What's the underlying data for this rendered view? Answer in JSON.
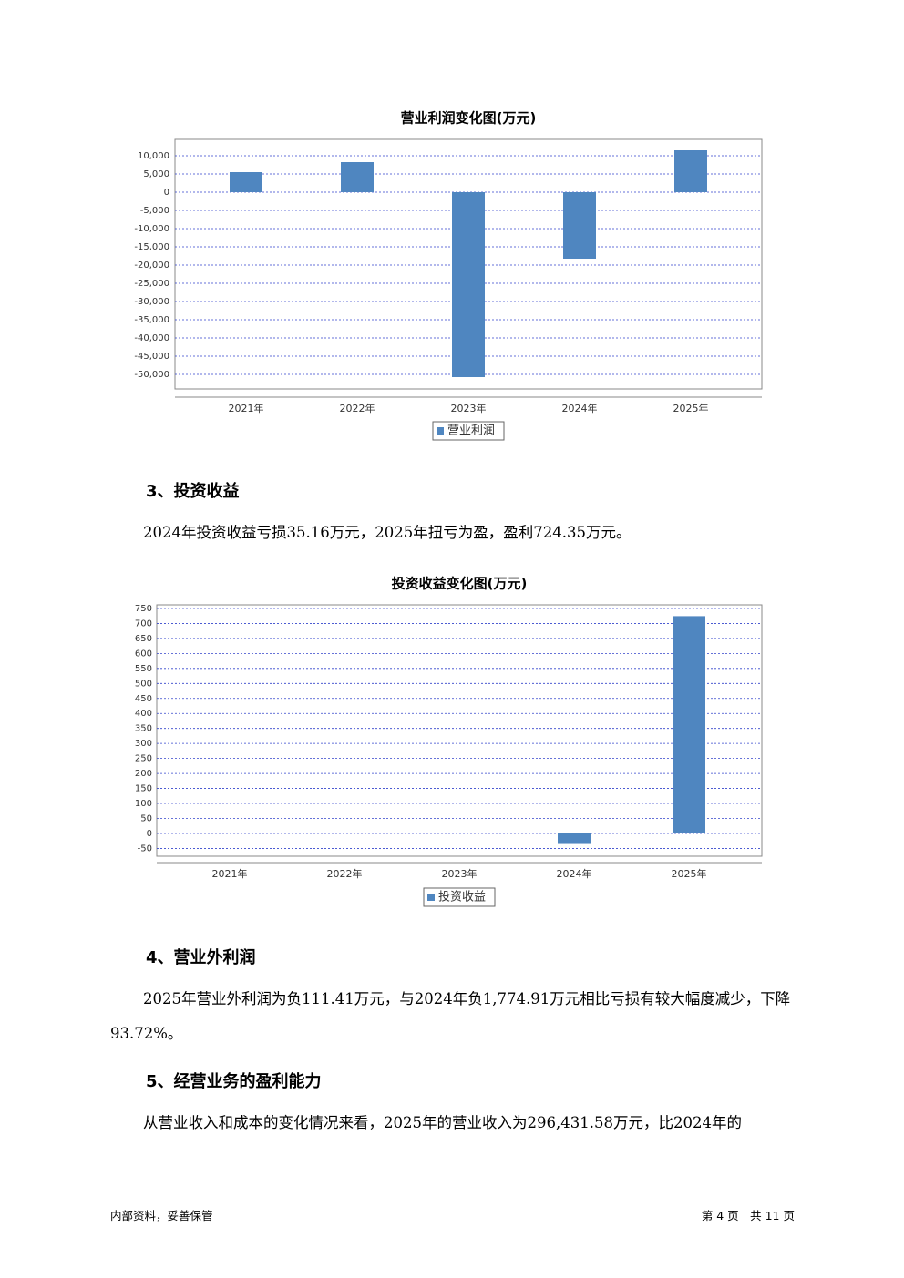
{
  "chart_data": [
    {
      "type": "bar",
      "title": "营业利润变化图(万元)",
      "categories": [
        "2021年",
        "2022年",
        "2023年",
        "2024年",
        "2025年"
      ],
      "series": [
        {
          "name": "营业利润",
          "color": "#4f86c0",
          "values": [
            5500,
            8250,
            -50750,
            -18250,
            11500
          ]
        }
      ],
      "ylim": [
        -54000,
        14500
      ],
      "yticks": [
        {
          "value": 10000,
          "label": "10,000"
        },
        {
          "value": 5000,
          "label": "5,000"
        },
        0,
        {
          "value": -5000,
          "label": "-5,000"
        },
        {
          "value": -10000,
          "label": "-10,000"
        },
        {
          "value": -15000,
          "label": "-15,000"
        },
        {
          "value": -20000,
          "label": "-20,000"
        },
        {
          "value": -25000,
          "label": "-25,000"
        },
        {
          "value": -30000,
          "label": "-30,000"
        },
        {
          "value": -35000,
          "label": "-35,000"
        },
        {
          "value": -40000,
          "label": "-40,000"
        },
        {
          "value": -45000,
          "label": "-45,000"
        },
        {
          "value": -50000,
          "label": "-50,000"
        }
      ],
      "grid": true
    },
    {
      "type": "bar",
      "title": "投资收益变化图(万元)",
      "categories": [
        "2021年",
        "2022年",
        "2023年",
        "2024年",
        "2025年"
      ],
      "series": [
        {
          "name": "投资收益",
          "color": "#4f86c0",
          "values": [
            0,
            0,
            0,
            -35.16,
            724.35
          ]
        }
      ],
      "ylim": [
        -76,
        762
      ],
      "yticks": [
        750,
        700,
        650,
        600,
        550,
        500,
        450,
        400,
        350,
        300,
        250,
        200,
        150,
        100,
        50,
        0,
        -50
      ],
      "grid": true
    }
  ],
  "document": {
    "sections": [
      {
        "heading": "3、投资收益",
        "paragraph": "2024年投资收益亏损35.16万元，2025年扭亏为盈，盈利724.35万元。"
      },
      {
        "heading": "4、营业外利润",
        "paragraph": "2025年营业外利润为负111.41万元，与2024年负1,774.91万元相比亏损有较大幅度减少，下降93.72%。"
      },
      {
        "heading": "5、经营业务的盈利能力",
        "paragraph": "从营业收入和成本的变化情况来看，2025年的营业收入为296,431.58万元，比2024年的"
      }
    ],
    "footer": {
      "left": "内部资料，妥善保管",
      "right": "第 4 页　共 11 页"
    }
  }
}
